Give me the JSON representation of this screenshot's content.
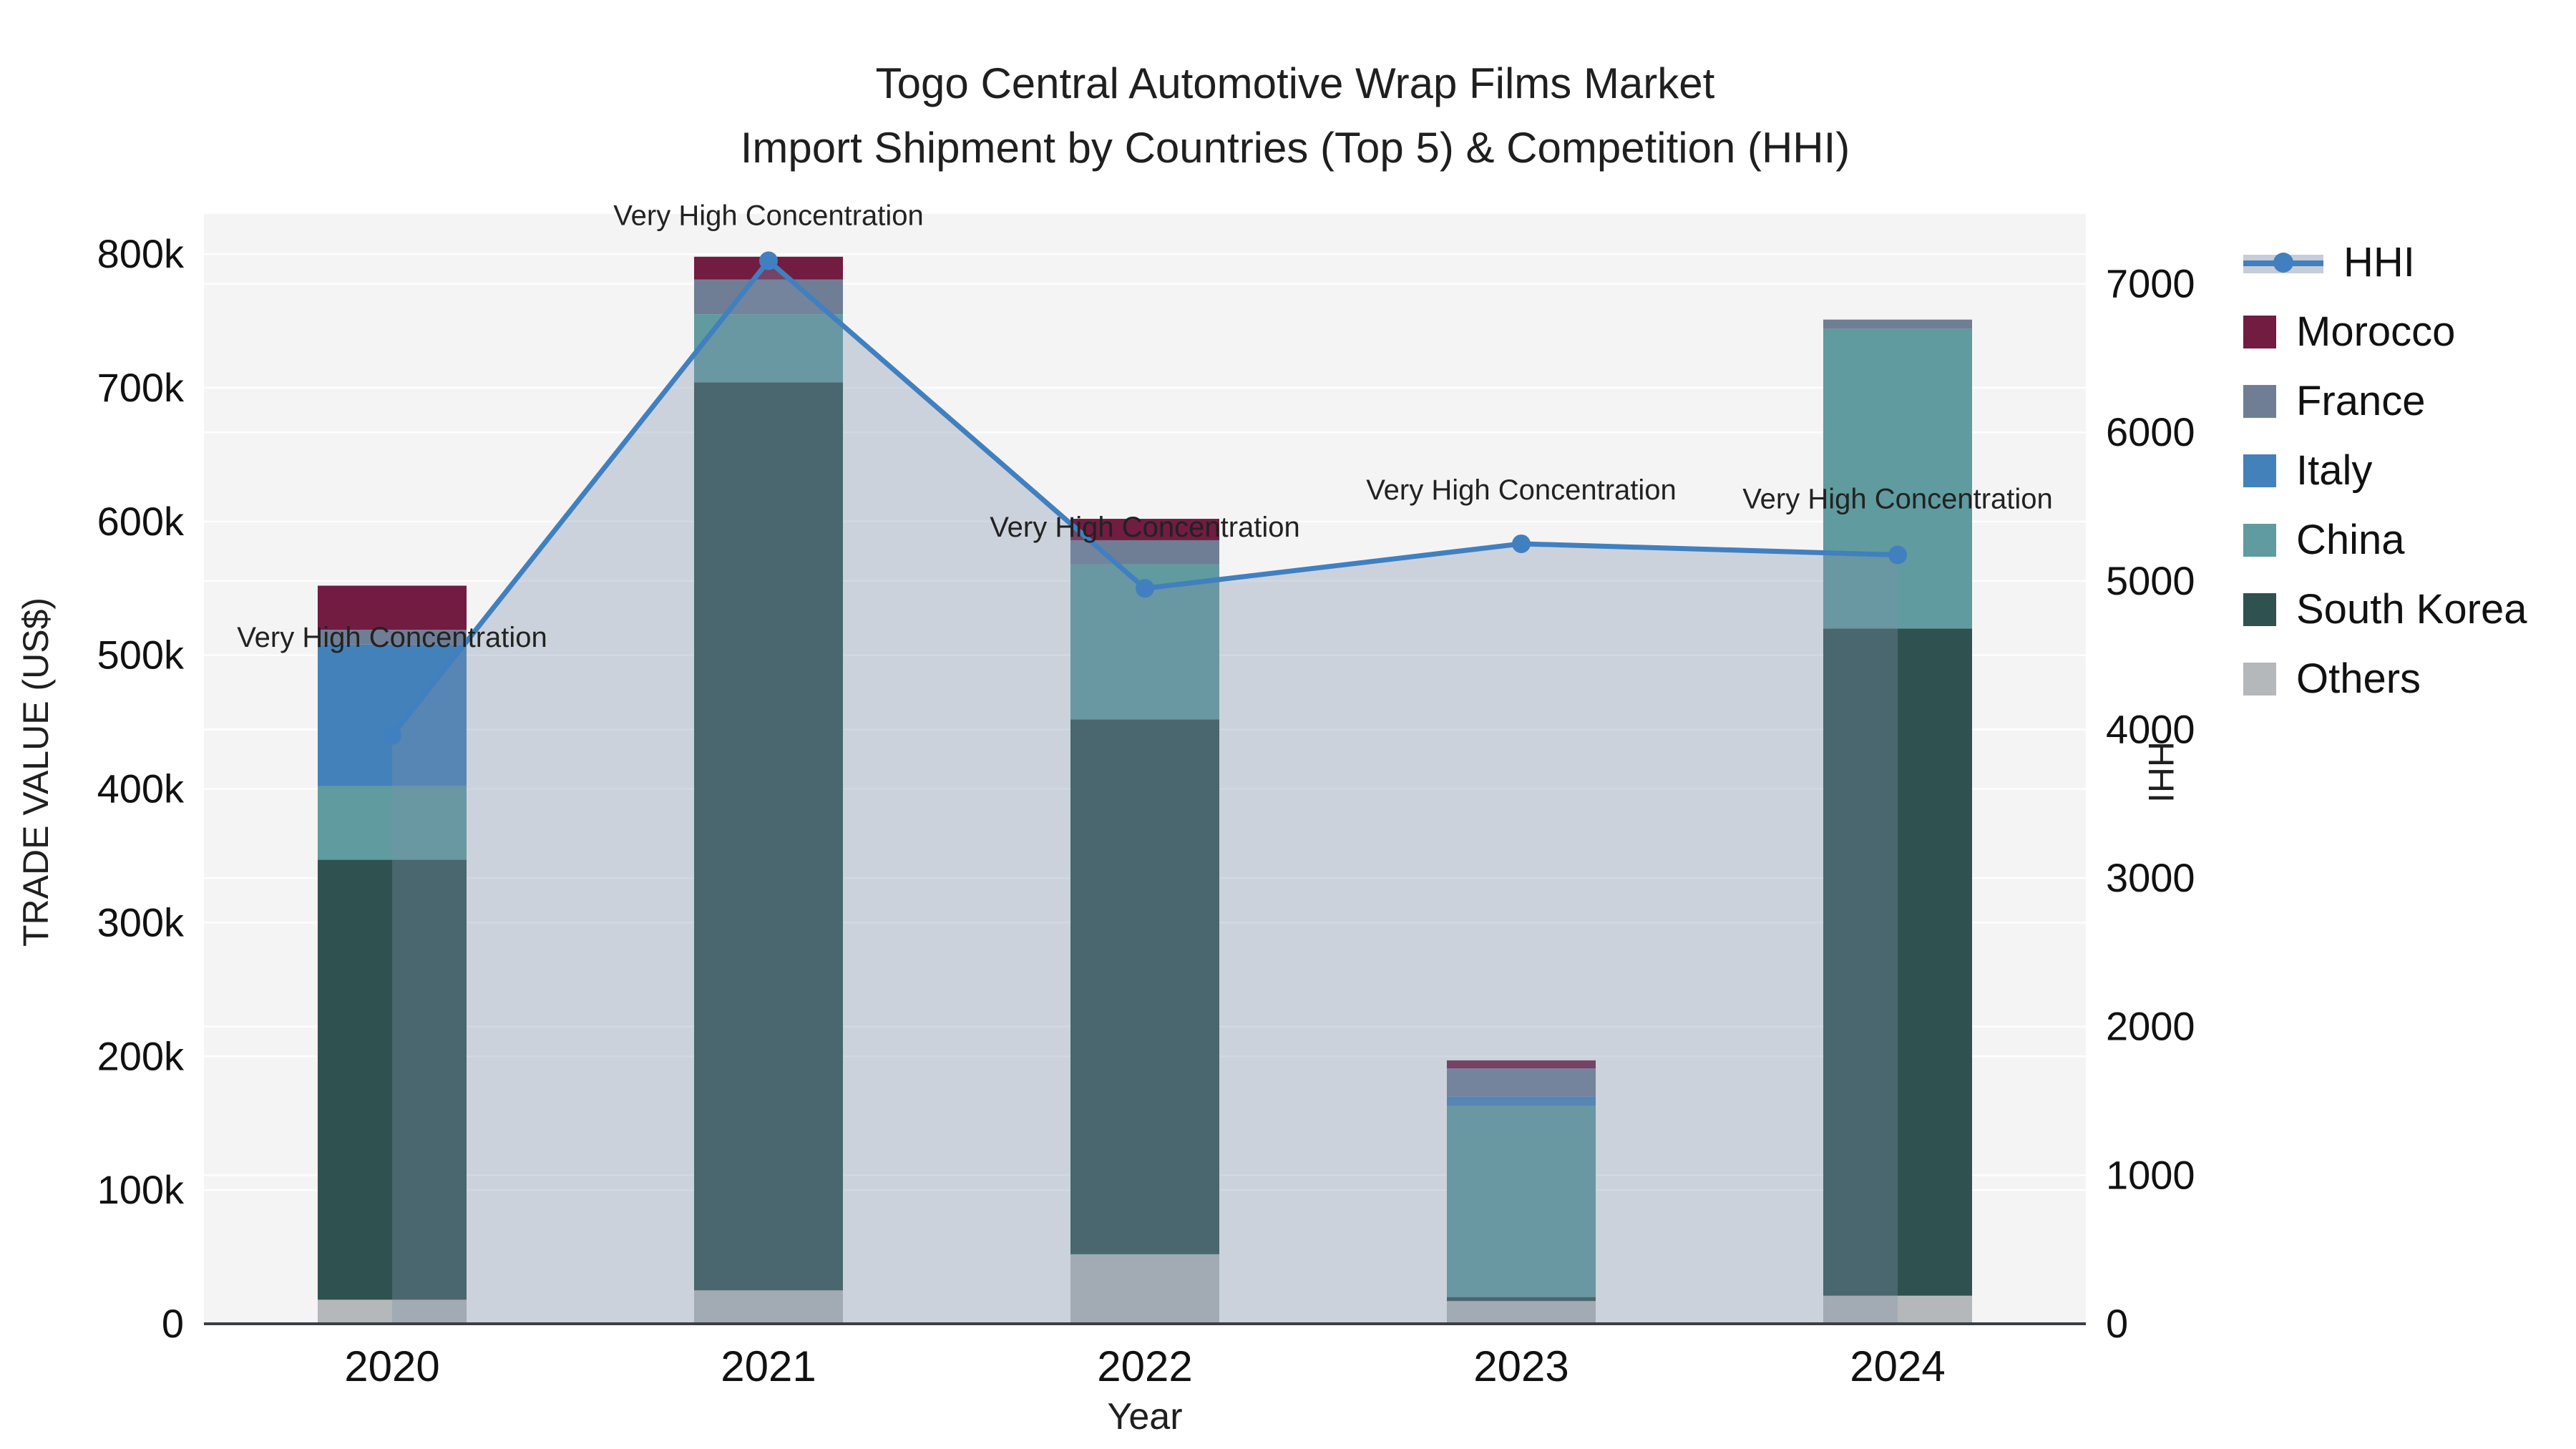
{
  "title": {
    "line1": "Togo Central Automotive Wrap Films Market",
    "line2": "Import Shipment by Countries (Top 5) & Competition (HHI)"
  },
  "chart_data": {
    "type": "bar",
    "subtype": "stacked-bar-with-hhi-line-and-area",
    "title": "Togo Central Automotive Wrap Films Market Import Shipment by Countries (Top 5) & Competition (HHI)",
    "xlabel": "Year",
    "ylabel_left": "TRADE VALUE (US$)",
    "ylabel_right": "HHI",
    "categories": [
      "2020",
      "2021",
      "2022",
      "2023",
      "2024"
    ],
    "units_note": "bar values in thousands of US$ as read from left axis",
    "ylim_left_thousands": [
      0,
      830
    ],
    "ylim_right_hhi": [
      0,
      7470
    ],
    "grid": true,
    "legend_position": "right-outside",
    "left_ticks": {
      "values": [
        0,
        100,
        200,
        300,
        400,
        500,
        600,
        700,
        800
      ],
      "labels": [
        "0",
        "100k",
        "200k",
        "300k",
        "400k",
        "500k",
        "600k",
        "700k",
        "800k"
      ]
    },
    "right_ticks": {
      "values": [
        0,
        1000,
        2000,
        3000,
        4000,
        5000,
        6000,
        7000
      ],
      "labels": [
        "0",
        "1000",
        "2000",
        "3000",
        "4000",
        "5000",
        "6000",
        "7000"
      ]
    },
    "series": [
      {
        "name": "Morocco",
        "color": "#721C42",
        "values_k": [
          33,
          17,
          16,
          6,
          0
        ]
      },
      {
        "name": "France",
        "color": "#6F7E95",
        "values_k": [
          11,
          26,
          18,
          21,
          7
        ]
      },
      {
        "name": "Italy",
        "color": "#4381BA",
        "values_k": [
          106,
          0,
          0,
          7,
          0
        ]
      },
      {
        "name": "China",
        "color": "#5F9B9F",
        "values_k": [
          55,
          51,
          116,
          143,
          224
        ]
      },
      {
        "name": "South Korea",
        "color": "#2F5150",
        "values_k": [
          329,
          679,
          400,
          3,
          499
        ]
      },
      {
        "name": "Others",
        "color": "#B5B8BA",
        "values_k": [
          18,
          25,
          52,
          17,
          21
        ]
      }
    ],
    "stack_order_bottom_to_top": [
      "Others",
      "South Korea",
      "China",
      "Italy",
      "France",
      "Morocco"
    ],
    "bar_totals_k": [
      552,
      798,
      602,
      197,
      751
    ],
    "hhi_line": {
      "name": "HHI",
      "color": "#4080C0",
      "area_fill": "rgba(127,145,171,0.34)",
      "values": [
        3960,
        7155,
        4950,
        5250,
        5175
      ]
    },
    "annotations": [
      {
        "year": "2020",
        "text": "Very High Concentration"
      },
      {
        "year": "2021",
        "text": "Very High Concentration"
      },
      {
        "year": "2022",
        "text": "Very High Concentration"
      },
      {
        "year": "2023",
        "text": "Very High Concentration"
      },
      {
        "year": "2024",
        "text": "Very High Concentration"
      }
    ],
    "legend": {
      "items": [
        {
          "label": "HHI"
        },
        {
          "label": "Morocco"
        },
        {
          "label": "France"
        },
        {
          "label": "Italy"
        },
        {
          "label": "China"
        },
        {
          "label": "South Korea"
        },
        {
          "label": "Others"
        }
      ]
    },
    "colors": {
      "plot_background": "#F5F4F4",
      "figure_background": "#FFFFFF",
      "gridline": "#FFFFFF",
      "axis_line": "#3A3F45",
      "text": "#1F1F1F"
    }
  }
}
